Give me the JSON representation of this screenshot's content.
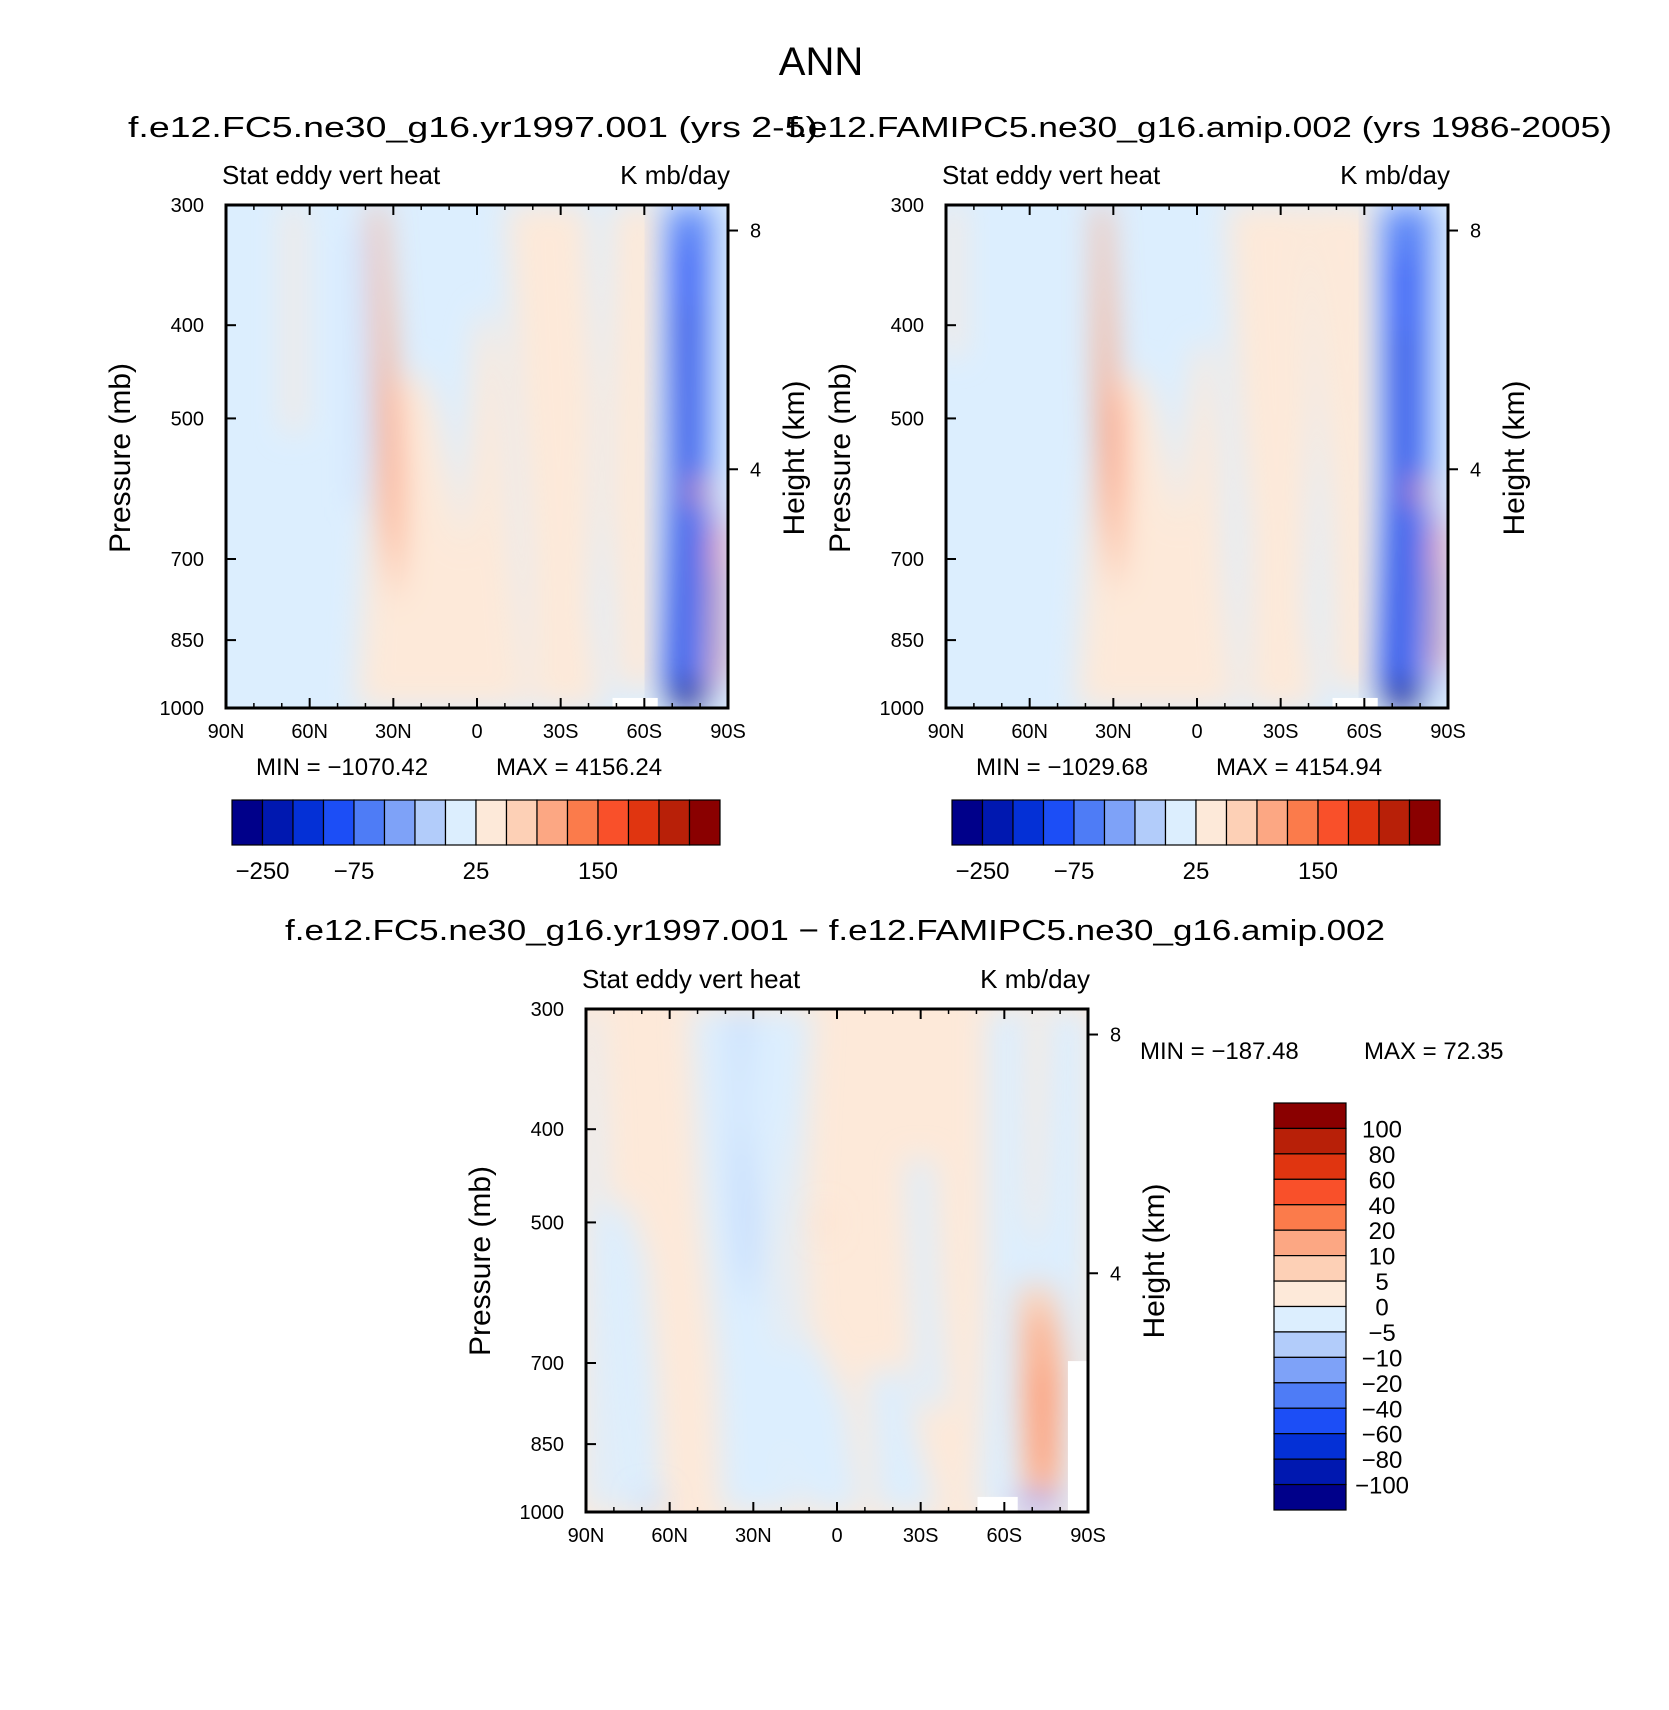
{
  "figure": {
    "title": "ANN"
  },
  "chart_data": [
    {
      "type": "heatmap",
      "title": "f.e12.FC5.ne30_g16.yr1997.001 (yrs 2-5)",
      "left_label": "Stat eddy vert heat",
      "right_label": "K mb/day",
      "ylabel": "Pressure (mb)",
      "ylabel_right": "Height (km)",
      "x_ticks": [
        "90N",
        "60N",
        "30N",
        "0",
        "30S",
        "60S",
        "90S"
      ],
      "y_ticks": [
        300,
        400,
        500,
        700,
        850,
        1000
      ],
      "y_scale": "log",
      "ylim": [
        1000,
        300
      ],
      "height_ticks": [
        8,
        4
      ],
      "min_label": "MIN = −1070.42",
      "max_label": "MAX = 4156.24",
      "min": -1070.42,
      "max": 4156.24,
      "colorbar": {
        "orientation": "horizontal",
        "tick_labels": [
          "−250",
          "−75",
          "25",
          "150"
        ],
        "tick_index": [
          1,
          4,
          8,
          12
        ],
        "colors": [
          "#00008a",
          "#0018b0",
          "#0430d6",
          "#1c4ef6",
          "#4e7cf6",
          "#7ea2f8",
          "#b2ccfa",
          "#dceefe",
          "#fde9d9",
          "#fdd0b6",
          "#fca783",
          "#fb7b4b",
          "#f9502a",
          "#e03510",
          "#b82008",
          "#8a0000"
        ]
      }
    },
    {
      "type": "heatmap",
      "title": "f.e12.FAMIPC5.ne30_g16.amip.002 (yrs 1986-2005)",
      "left_label": "Stat eddy vert heat",
      "right_label": "K mb/day",
      "ylabel": "Pressure (mb)",
      "ylabel_right": "Height (km)",
      "x_ticks": [
        "90N",
        "60N",
        "30N",
        "0",
        "30S",
        "60S",
        "90S"
      ],
      "y_ticks": [
        300,
        400,
        500,
        700,
        850,
        1000
      ],
      "y_scale": "log",
      "ylim": [
        1000,
        300
      ],
      "height_ticks": [
        8,
        4
      ],
      "min_label": "MIN = −1029.68",
      "max_label": "MAX = 4154.94",
      "min": -1029.68,
      "max": 4154.94,
      "colorbar": {
        "orientation": "horizontal",
        "tick_labels": [
          "−250",
          "−75",
          "25",
          "150"
        ],
        "tick_index": [
          1,
          4,
          8,
          12
        ],
        "colors": [
          "#00008a",
          "#0018b0",
          "#0430d6",
          "#1c4ef6",
          "#4e7cf6",
          "#7ea2f8",
          "#b2ccfa",
          "#dceefe",
          "#fde9d9",
          "#fdd0b6",
          "#fca783",
          "#fb7b4b",
          "#f9502a",
          "#e03510",
          "#b82008",
          "#8a0000"
        ]
      }
    },
    {
      "type": "heatmap",
      "title": "f.e12.FC5.ne30_g16.yr1997.001 − f.e12.FAMIPC5.ne30_g16.amip.002",
      "left_label": "Stat eddy vert heat",
      "right_label": "K mb/day",
      "ylabel": "Pressure (mb)",
      "ylabel_right": "Height (km)",
      "x_ticks": [
        "90N",
        "60N",
        "30N",
        "0",
        "30S",
        "60S",
        "90S"
      ],
      "y_ticks": [
        300,
        400,
        500,
        700,
        850,
        1000
      ],
      "y_scale": "log",
      "ylim": [
        1000,
        300
      ],
      "height_ticks": [
        8,
        4
      ],
      "min_label": "MIN = −187.48",
      "max_label": "MAX =  72.35",
      "min": -187.48,
      "max": 72.35,
      "colorbar": {
        "orientation": "vertical",
        "levels": [
          "100",
          "80",
          "60",
          "40",
          "20",
          "10",
          "5",
          "0",
          "−5",
          "−10",
          "−20",
          "−40",
          "−60",
          "−80",
          "−100"
        ],
        "colors": [
          "#8a0000",
          "#b82008",
          "#e03510",
          "#f9502a",
          "#fb7b4b",
          "#fca783",
          "#fdd0b6",
          "#fde9d9",
          "#dceefe",
          "#b2ccfa",
          "#7ea2f8",
          "#4e7cf6",
          "#1c4ef6",
          "#0430d6",
          "#0018b0",
          "#00008a"
        ]
      }
    }
  ]
}
